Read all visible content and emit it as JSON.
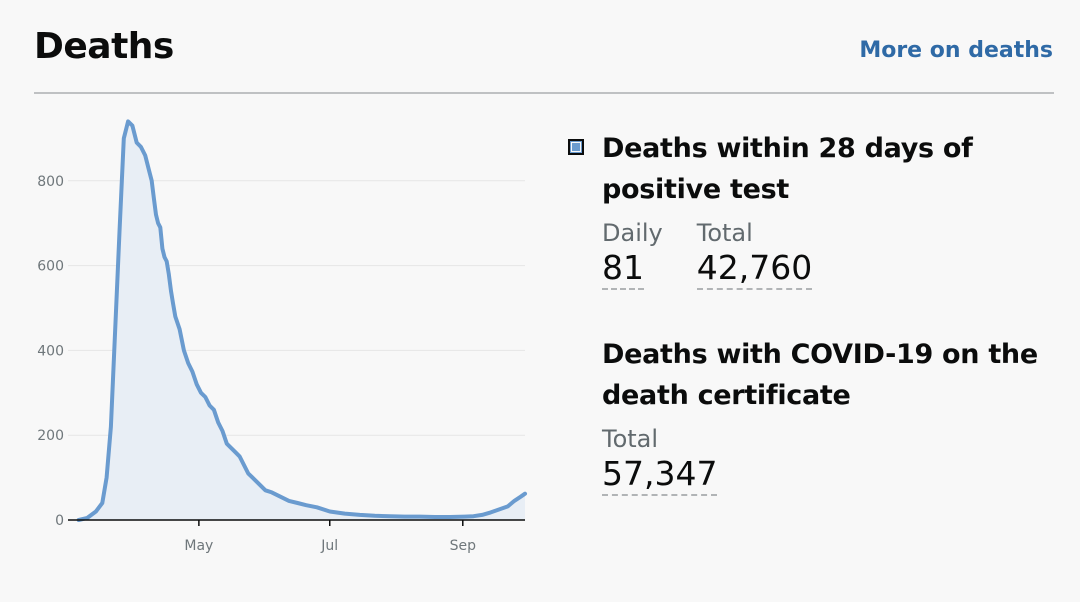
{
  "header": {
    "title": "Deaths",
    "more_link": "More on deaths"
  },
  "metrics": {
    "within28": {
      "heading": "Deaths within 28 days of positive test",
      "daily_label": "Daily",
      "daily_value": "81",
      "total_label": "Total",
      "total_value": "42,760"
    },
    "certificate": {
      "heading": "Deaths with COVID-19 on the death certificate",
      "total_label": "Total",
      "total_value": "57,347"
    }
  },
  "colors": {
    "line": "#6a9bcf",
    "fill": "#e8eef5",
    "link": "#2f6aa6",
    "grid": "#e6e6e6"
  },
  "chart_data": {
    "type": "area",
    "series": [
      {
        "name": "Deaths within 28 days of positive test",
        "x": [
          "2020-03-06",
          "2020-03-10",
          "2020-03-14",
          "2020-03-17",
          "2020-03-19",
          "2020-03-21",
          "2020-03-23",
          "2020-03-25",
          "2020-03-27",
          "2020-03-29",
          "2020-03-31",
          "2020-04-02",
          "2020-04-04",
          "2020-04-06",
          "2020-04-08",
          "2020-04-09",
          "2020-04-10",
          "2020-04-11",
          "2020-04-12",
          "2020-04-13",
          "2020-04-14",
          "2020-04-15",
          "2020-04-16",
          "2020-04-17",
          "2020-04-18",
          "2020-04-19",
          "2020-04-20",
          "2020-04-22",
          "2020-04-24",
          "2020-04-26",
          "2020-04-28",
          "2020-04-30",
          "2020-05-02",
          "2020-05-04",
          "2020-05-06",
          "2020-05-08",
          "2020-05-10",
          "2020-05-12",
          "2020-05-14",
          "2020-05-16",
          "2020-05-18",
          "2020-05-20",
          "2020-05-22",
          "2020-05-24",
          "2020-05-26",
          "2020-05-28",
          "2020-05-30",
          "2020-06-01",
          "2020-06-04",
          "2020-06-08",
          "2020-06-12",
          "2020-06-16",
          "2020-06-20",
          "2020-06-25",
          "2020-07-01",
          "2020-07-08",
          "2020-07-15",
          "2020-07-22",
          "2020-07-29",
          "2020-08-05",
          "2020-08-12",
          "2020-08-19",
          "2020-08-26",
          "2020-09-02",
          "2020-09-06",
          "2020-09-10",
          "2020-09-14",
          "2020-09-18",
          "2020-09-22",
          "2020-09-25",
          "2020-09-28",
          "2020-09-30"
        ],
        "values": [
          0,
          5,
          20,
          40,
          100,
          220,
          450,
          680,
          900,
          940,
          930,
          890,
          880,
          860,
          820,
          800,
          760,
          720,
          700,
          690,
          640,
          620,
          610,
          580,
          540,
          510,
          480,
          450,
          400,
          370,
          350,
          320,
          300,
          290,
          270,
          260,
          230,
          210,
          180,
          170,
          160,
          150,
          130,
          110,
          100,
          90,
          80,
          70,
          65,
          55,
          45,
          40,
          35,
          30,
          20,
          15,
          12,
          10,
          9,
          8,
          8,
          7,
          7,
          8,
          9,
          12,
          18,
          25,
          32,
          45,
          55,
          62
        ]
      }
    ],
    "yticks": [
      0,
      200,
      400,
      600,
      800
    ],
    "xticks": [
      {
        "label": "May",
        "date": "2020-05-01"
      },
      {
        "label": "Jul",
        "date": "2020-07-01"
      },
      {
        "label": "Sep",
        "date": "2020-09-01"
      }
    ],
    "xlim": [
      "2020-03-01",
      "2020-09-30"
    ],
    "ylim": [
      0,
      1000
    ],
    "grid": true,
    "legend": "none"
  }
}
